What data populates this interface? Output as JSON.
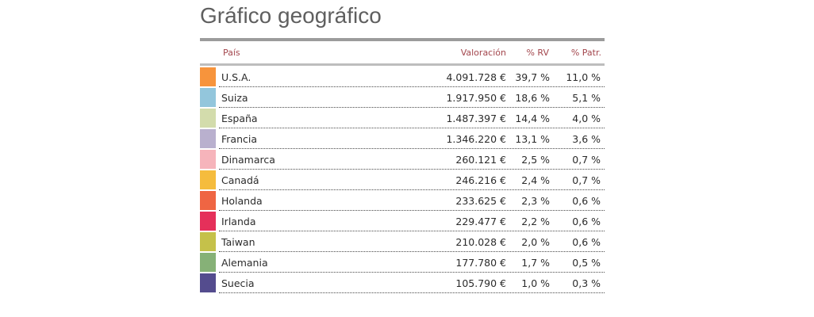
{
  "title": "Gráfico geográfico",
  "header": {
    "country": "País",
    "valuation": "Valoración",
    "pct_rv": "% RV",
    "pct_patr": "% Patr."
  },
  "rows": [
    {
      "country": "U.S.A.",
      "valuation": "4.091.728 €",
      "pct_rv": "39,7 %",
      "pct_patr": "11,0 %",
      "color": "#f7943c"
    },
    {
      "country": "Suiza",
      "valuation": "1.917.950 €",
      "pct_rv": "18,6 %",
      "pct_patr": "5,1 %",
      "color": "#93c6dc"
    },
    {
      "country": "España",
      "valuation": "1.487.397 €",
      "pct_rv": "14,4 %",
      "pct_patr": "4,0 %",
      "color": "#d3dcac"
    },
    {
      "country": "Francia",
      "valuation": "1.346.220 €",
      "pct_rv": "13,1 %",
      "pct_patr": "3,6 %",
      "color": "#b9b0ce"
    },
    {
      "country": "Dinamarca",
      "valuation": "260.121 €",
      "pct_rv": "2,5 %",
      "pct_patr": "0,7 %",
      "color": "#f6b4bb"
    },
    {
      "country": "Canadá",
      "valuation": "246.216 €",
      "pct_rv": "2,4 %",
      "pct_patr": "0,7 %",
      "color": "#f5bc3d"
    },
    {
      "country": "Holanda",
      "valuation": "233.625 €",
      "pct_rv": "2,3 %",
      "pct_patr": "0,6 %",
      "color": "#ef6543"
    },
    {
      "country": "Irlanda",
      "valuation": "229.477 €",
      "pct_rv": "2,2 %",
      "pct_patr": "0,6 %",
      "color": "#e5305a"
    },
    {
      "country": "Taiwan",
      "valuation": "210.028 €",
      "pct_rv": "2,0 %",
      "pct_patr": "0,6 %",
      "color": "#c5c14a"
    },
    {
      "country": "Alemania",
      "valuation": "177.780 €",
      "pct_rv": "1,7 %",
      "pct_patr": "0,5 %",
      "color": "#86b177"
    },
    {
      "country": "Suecia",
      "valuation": "105.790 €",
      "pct_rv": "1,0 %",
      "pct_patr": "0,3 %",
      "color": "#544c8e"
    }
  ]
}
